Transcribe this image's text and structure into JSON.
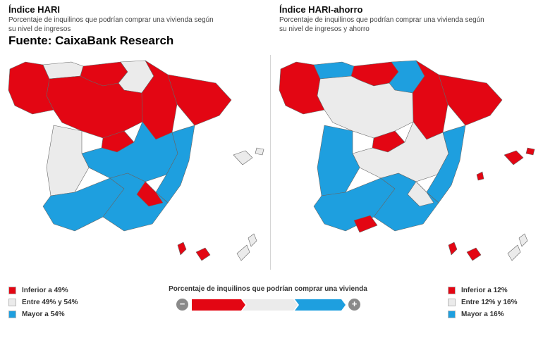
{
  "left_panel": {
    "title": "Índice HARI",
    "subtitle": "Porcentaje de inquilinos que podrían comprar una vivienda según su nivel de ingresos",
    "legend": [
      {
        "label": "Inferior a 49%",
        "color": "#e30613"
      },
      {
        "label": "Entre 49% y 54%",
        "color": "#ebebeb"
      },
      {
        "label": "Mayor a 54%",
        "color": "#1e9fdf"
      }
    ]
  },
  "right_panel": {
    "title": "Índice HARI-ahorro",
    "subtitle": "Porcentaje de inquilinos que podrían comprar una vivienda según su nivel de ingresos y ahorro",
    "legend": [
      {
        "label": "Inferior a 12%",
        "color": "#e30613"
      },
      {
        "label": "Entre 12% y 16%",
        "color": "#ebebeb"
      },
      {
        "label": "Mayor a 16%",
        "color": "#1e9fdf"
      }
    ]
  },
  "source": "Fuente: CaixaBank Research",
  "scale": {
    "title": "Porcentaje de inquilinos que podrían comprar una vivienda",
    "minus_symbol": "−",
    "plus_symbol": "+",
    "colors": [
      "#e30613",
      "#ebebeb",
      "#1e9fdf"
    ]
  },
  "map_colors": {
    "red": "#e30613",
    "grey": "#ebebeb",
    "blue": "#1e9fdf"
  }
}
